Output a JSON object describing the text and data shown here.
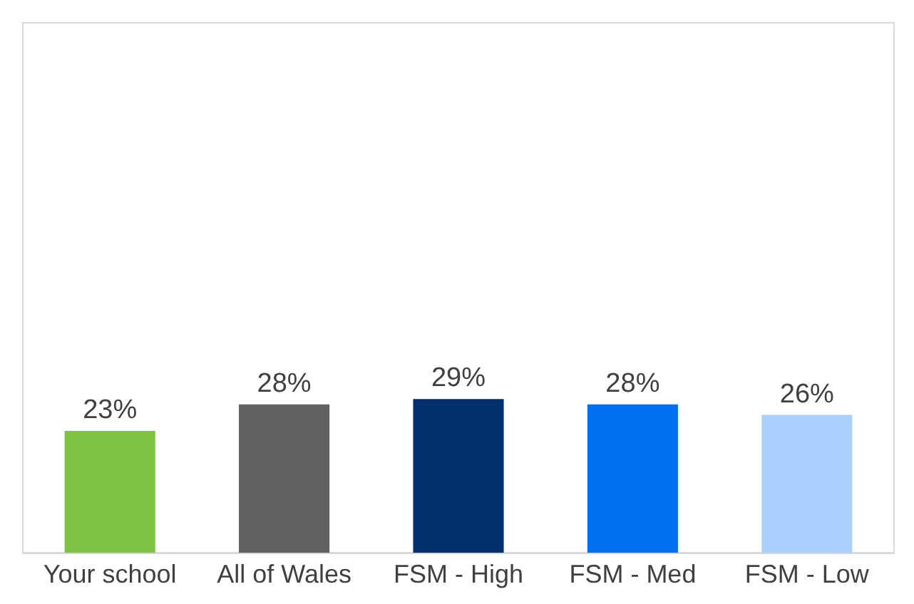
{
  "chart_data": {
    "type": "bar",
    "categories": [
      "Your school",
      "All of Wales",
      "FSM - High",
      "FSM - Med",
      "FSM - Low"
    ],
    "values": [
      23,
      28,
      29,
      28,
      26
    ],
    "value_labels": [
      "23%",
      "28%",
      "29%",
      "28%",
      "26%"
    ],
    "colors": [
      "#7dc242",
      "#606060",
      "#002f6c",
      "#0070f0",
      "#aad0ff"
    ],
    "ylim": [
      0,
      100
    ],
    "tick_labels": "x"
  }
}
